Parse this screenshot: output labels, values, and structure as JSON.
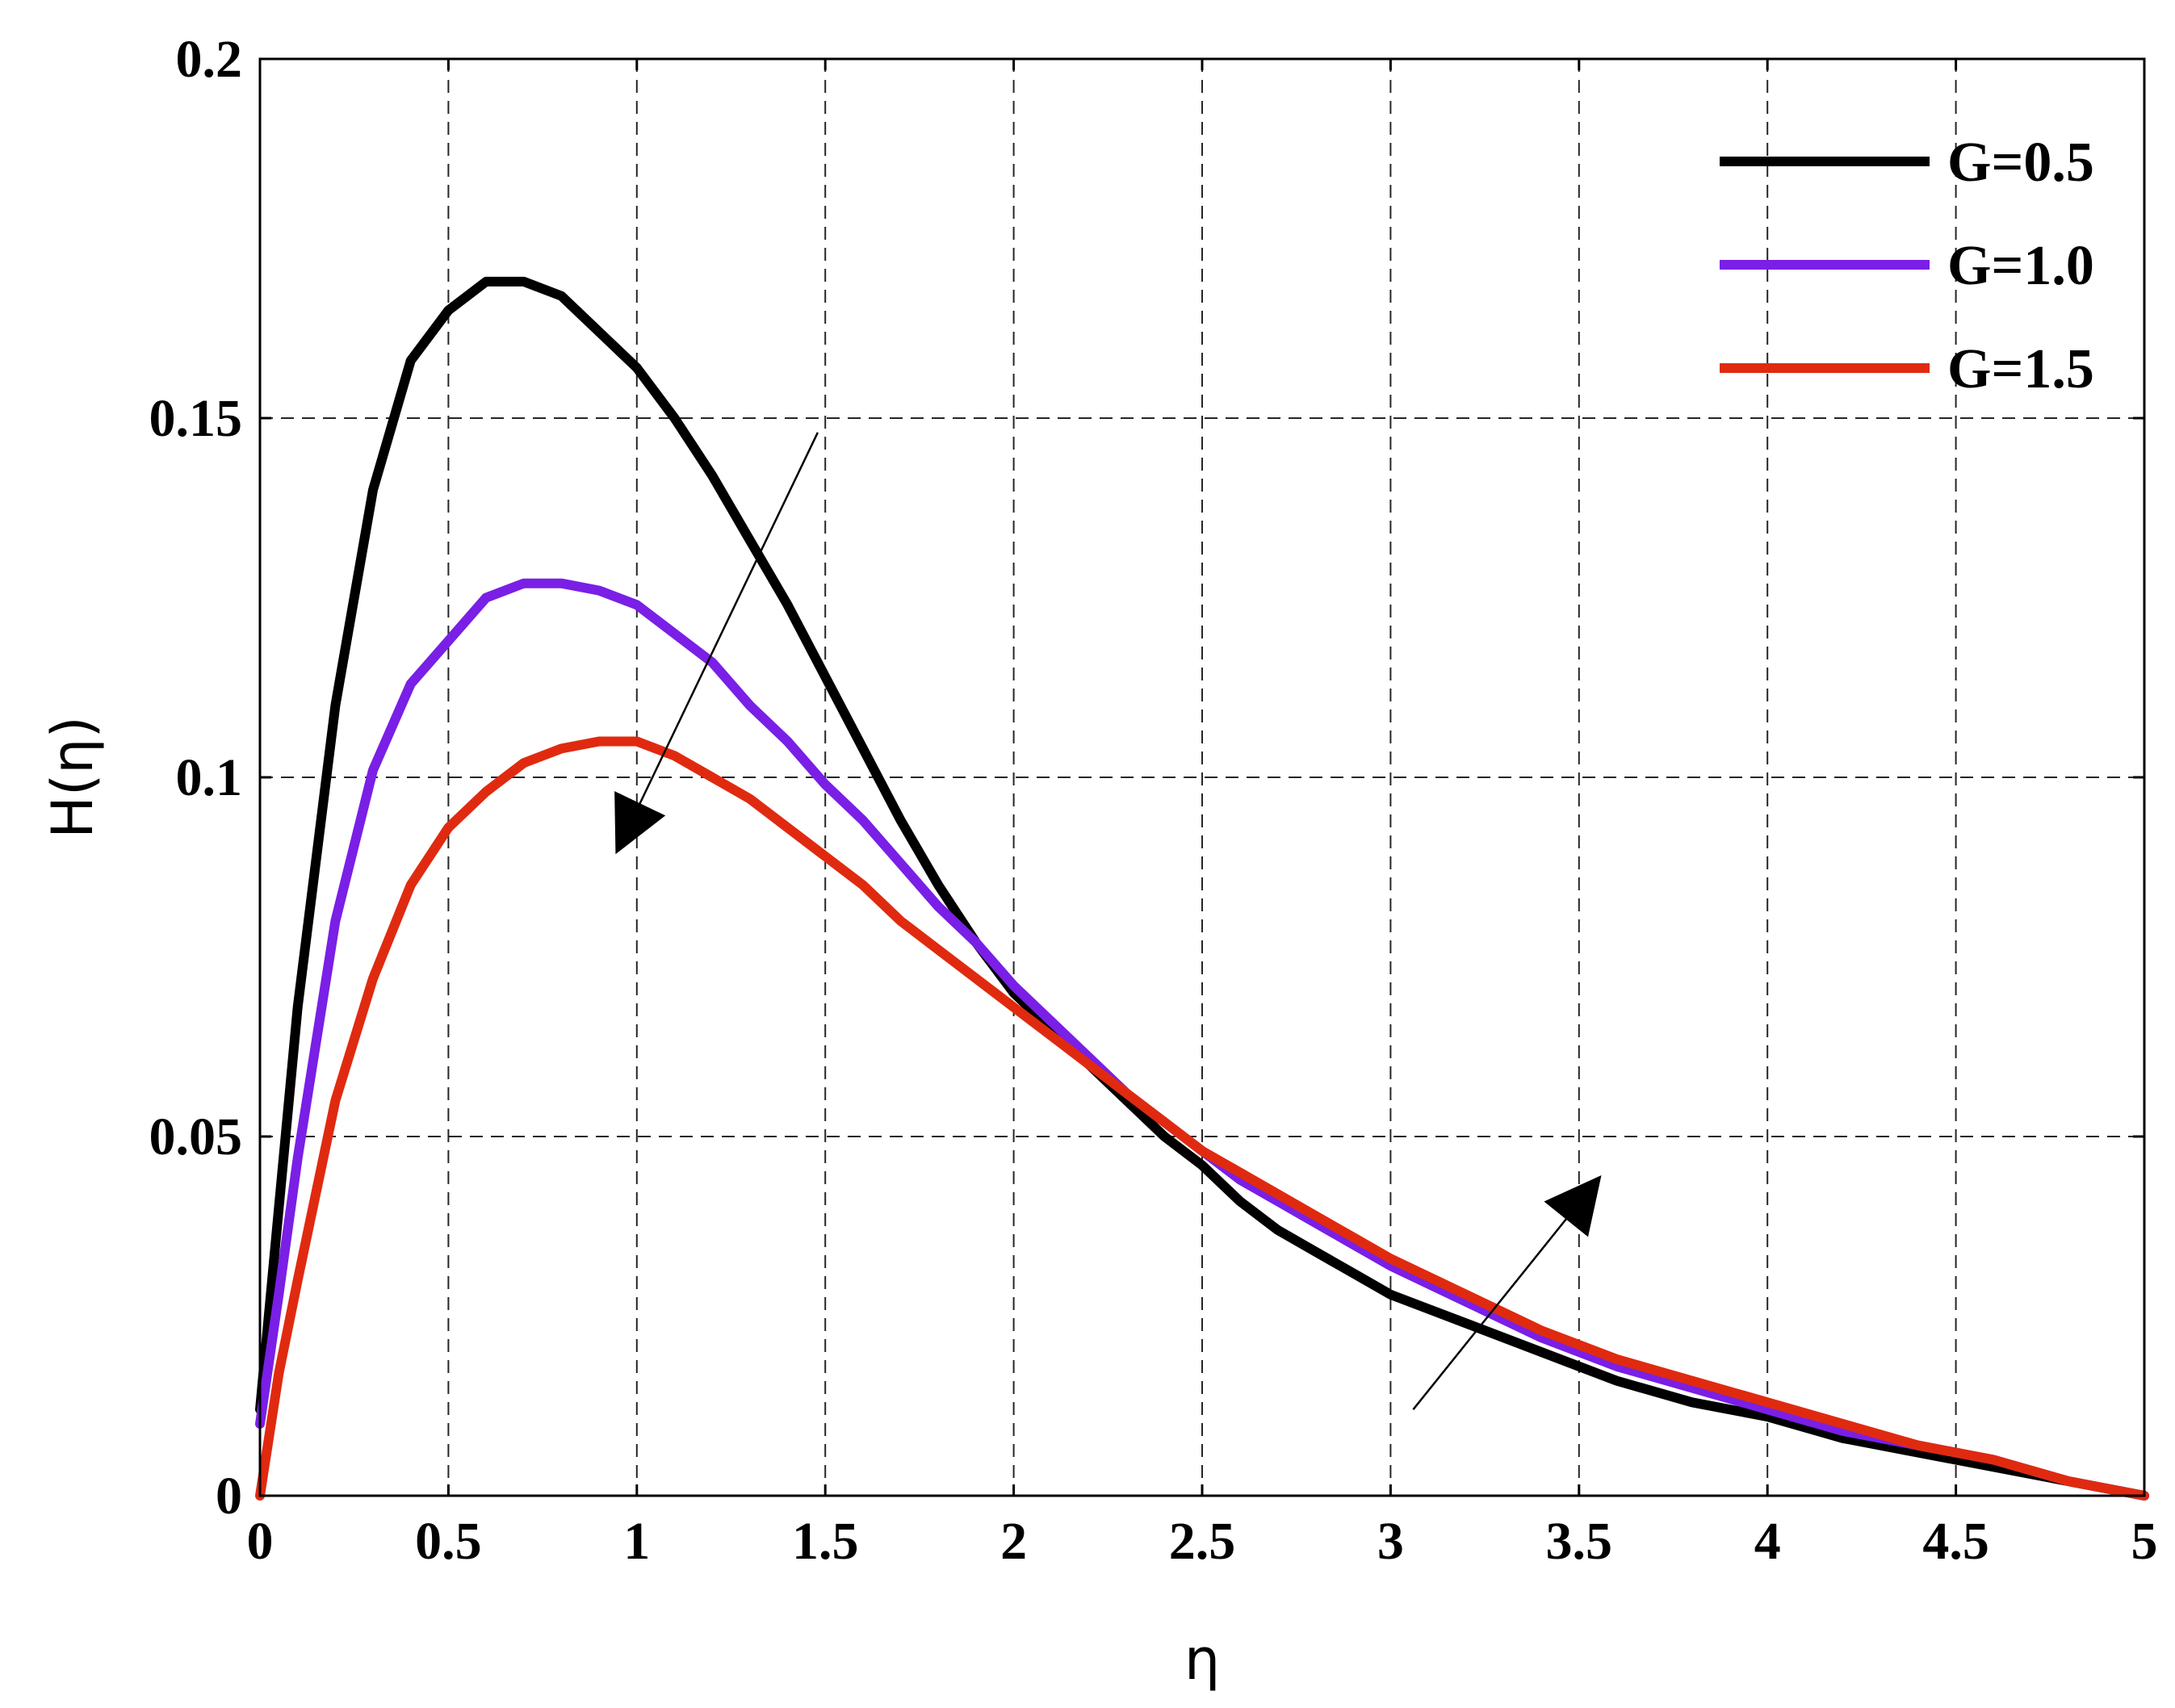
{
  "chart_data": {
    "type": "line",
    "title": "",
    "xlabel": "η",
    "ylabel": "H(η)",
    "xlim": [
      0,
      5
    ],
    "ylim": [
      0,
      0.2
    ],
    "x_ticks": [
      "0",
      "0.5",
      "1",
      "1.5",
      "2",
      "2.5",
      "3",
      "3.5",
      "4",
      "4.5",
      "5"
    ],
    "y_ticks": [
      "0",
      "0.05",
      "0.1",
      "0.15",
      "0.2"
    ],
    "grid": true,
    "legend_position": "top-right",
    "x": [
      0,
      0.05,
      0.1,
      0.2,
      0.3,
      0.4,
      0.5,
      0.6,
      0.7,
      0.8,
      0.9,
      1.0,
      1.1,
      1.2,
      1.3,
      1.4,
      1.5,
      1.6,
      1.7,
      1.8,
      1.9,
      2.0,
      2.1,
      2.2,
      2.3,
      2.4,
      2.5,
      2.6,
      2.7,
      2.8,
      2.9,
      3.0,
      3.2,
      3.4,
      3.6,
      3.8,
      4.0,
      4.2,
      4.4,
      4.6,
      4.8,
      5.0
    ],
    "series": [
      {
        "name": "G=0.5",
        "color": "#000000",
        "values": [
          0.012,
          0.04,
          0.068,
          0.11,
          0.14,
          0.158,
          0.165,
          0.169,
          0.169,
          0.167,
          0.162,
          0.157,
          0.15,
          0.142,
          0.133,
          0.124,
          0.114,
          0.104,
          0.094,
          0.085,
          0.077,
          0.07,
          0.065,
          0.06,
          0.055,
          0.05,
          0.046,
          0.041,
          0.037,
          0.034,
          0.031,
          0.028,
          0.024,
          0.02,
          0.016,
          0.013,
          0.011,
          0.008,
          0.006,
          0.004,
          0.002,
          0.0
        ]
      },
      {
        "name": "G=1.0",
        "color": "#7a1fe6",
        "values": [
          0.01,
          0.028,
          0.047,
          0.08,
          0.101,
          0.113,
          0.119,
          0.125,
          0.127,
          0.127,
          0.126,
          0.124,
          0.12,
          0.116,
          0.11,
          0.105,
          0.099,
          0.094,
          0.088,
          0.082,
          0.077,
          0.071,
          0.066,
          0.061,
          0.056,
          0.052,
          0.048,
          0.044,
          0.041,
          0.038,
          0.035,
          0.032,
          0.027,
          0.022,
          0.018,
          0.015,
          0.012,
          0.009,
          0.007,
          0.005,
          0.002,
          0.0
        ]
      },
      {
        "name": "G=1.5",
        "color": "#e02a10",
        "values": [
          0.0,
          0.017,
          0.03,
          0.055,
          0.072,
          0.085,
          0.093,
          0.098,
          0.102,
          0.104,
          0.105,
          0.105,
          0.103,
          0.1,
          0.097,
          0.093,
          0.089,
          0.085,
          0.08,
          0.076,
          0.072,
          0.068,
          0.064,
          0.06,
          0.056,
          0.052,
          0.048,
          0.045,
          0.042,
          0.039,
          0.036,
          0.033,
          0.028,
          0.023,
          0.019,
          0.016,
          0.013,
          0.01,
          0.007,
          0.005,
          0.002,
          0.0
        ]
      }
    ],
    "annotations": [
      {
        "type": "arrow",
        "direction": "decreasing",
        "meaning": "peak decreases with increasing G",
        "from": [
          1.48,
          0.148
        ],
        "to": [
          0.95,
          0.09
        ]
      },
      {
        "type": "arrow",
        "direction": "increasing",
        "meaning": "tail increases with increasing G",
        "from": [
          3.06,
          0.012
        ],
        "to": [
          3.55,
          0.044
        ]
      }
    ]
  }
}
